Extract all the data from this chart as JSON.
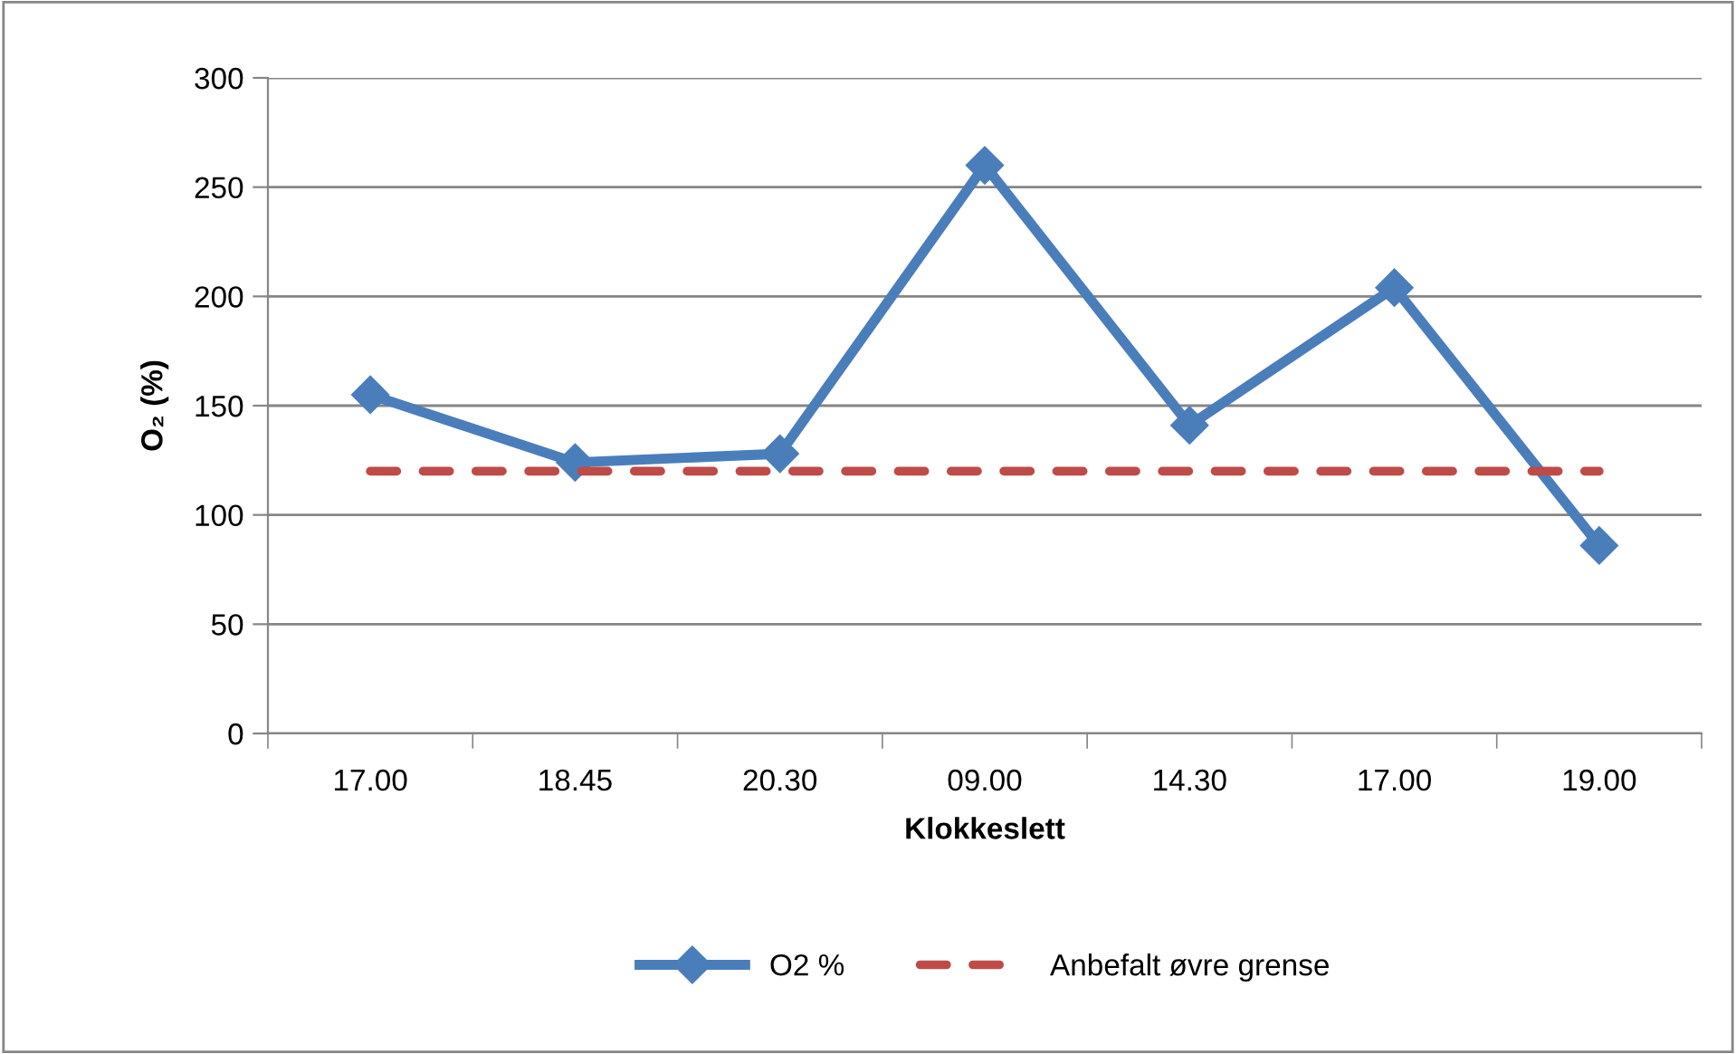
{
  "chart_data": {
    "type": "line",
    "xlabel": "Klokkeslett",
    "ylabel": "O₂ (%)",
    "categories": [
      "17.00",
      "18.45",
      "20.30",
      "09.00",
      "14.30",
      "17.00",
      "19.00"
    ],
    "series": [
      {
        "name": "O2 %",
        "color": "#4a7ebb",
        "marker": "diamond",
        "line_style": "solid",
        "values": [
          155,
          124,
          128,
          260,
          141,
          204,
          86
        ]
      },
      {
        "name": "Anbefalt øvre grense",
        "color": "#be4b48",
        "marker": "none",
        "line_style": "dashed",
        "values": [
          120,
          120,
          120,
          120,
          120,
          120,
          120
        ]
      }
    ],
    "ylim": [
      0,
      300
    ],
    "yticks": [
      0,
      50,
      100,
      150,
      200,
      250,
      300
    ],
    "grid": "y",
    "legend": "bottom"
  }
}
